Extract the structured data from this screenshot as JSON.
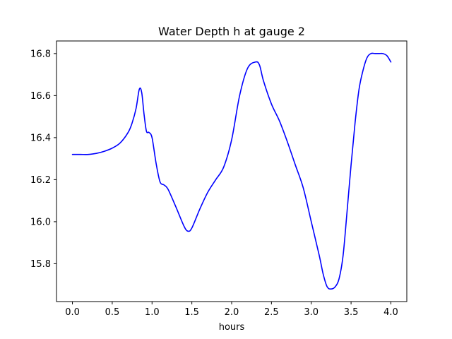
{
  "chart_data": {
    "type": "line",
    "title": "Water Depth h at gauge 2",
    "xlabel": "hours",
    "ylabel": "",
    "xlim": [
      -0.2,
      4.2
    ],
    "ylim": [
      15.62,
      16.86
    ],
    "xticks": [
      0.0,
      0.5,
      1.0,
      1.5,
      2.0,
      2.5,
      3.0,
      3.5,
      4.0
    ],
    "xtick_labels": [
      "0.0",
      "0.5",
      "1.0",
      "1.5",
      "2.0",
      "2.5",
      "3.0",
      "3.5",
      "4.0"
    ],
    "yticks": [
      15.8,
      16.0,
      16.2,
      16.4,
      16.6,
      16.8
    ],
    "ytick_labels": [
      "15.8",
      "16.0",
      "16.2",
      "16.4",
      "16.6",
      "16.8"
    ],
    "grid": false,
    "legend": "none",
    "series": [
      {
        "color": "#0000ff",
        "x": [
          0.0,
          0.1,
          0.2,
          0.3,
          0.4,
          0.5,
          0.6,
          0.7,
          0.75,
          0.8,
          0.84,
          0.87,
          0.9,
          0.93,
          0.96,
          1.0,
          1.05,
          1.1,
          1.15,
          1.2,
          1.3,
          1.4,
          1.45,
          1.5,
          1.6,
          1.7,
          1.8,
          1.9,
          2.0,
          2.1,
          2.2,
          2.3,
          2.35,
          2.4,
          2.5,
          2.6,
          2.7,
          2.8,
          2.9,
          3.0,
          3.1,
          3.15,
          3.2,
          3.25,
          3.3,
          3.35,
          3.4,
          3.45,
          3.5,
          3.55,
          3.6,
          3.65,
          3.7,
          3.75,
          3.8,
          3.85,
          3.9,
          3.95,
          4.0
        ],
        "y": [
          16.32,
          16.32,
          16.32,
          16.325,
          16.335,
          16.35,
          16.375,
          16.425,
          16.47,
          16.54,
          16.63,
          16.615,
          16.51,
          16.43,
          16.425,
          16.4,
          16.28,
          16.19,
          16.175,
          16.155,
          16.07,
          15.98,
          15.955,
          15.97,
          16.06,
          16.14,
          16.2,
          16.26,
          16.39,
          16.6,
          16.73,
          16.76,
          16.745,
          16.67,
          16.56,
          16.48,
          16.38,
          16.27,
          16.16,
          16.0,
          15.84,
          15.75,
          15.69,
          15.68,
          15.69,
          15.73,
          15.84,
          16.05,
          16.27,
          16.47,
          16.63,
          16.72,
          16.78,
          16.8,
          16.8,
          16.8,
          16.8,
          16.79,
          16.76
        ]
      }
    ]
  }
}
